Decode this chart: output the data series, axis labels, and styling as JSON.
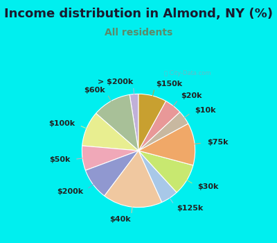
{
  "title": "Income distribution in Almond, NY (%)",
  "subtitle": "All residents",
  "title_color": "#1a1a2e",
  "subtitle_color": "#5a8a6a",
  "bg_cyan": "#00EFEF",
  "bg_chart": "#d8ede0",
  "labels": [
    "> $200k",
    "$60k",
    "$100k",
    "$50k",
    "$200k",
    "$40k",
    "$125k",
    "$30k",
    "$75k",
    "$10k",
    "$20k",
    "$150k"
  ],
  "values": [
    2.5,
    11,
    10,
    7,
    9,
    17,
    5,
    9,
    12,
    4,
    5,
    8
  ],
  "colors": [
    "#c0b0d8",
    "#a8c098",
    "#e8ee90",
    "#f0a8b8",
    "#9098d0",
    "#f0c8a0",
    "#a8c8e8",
    "#c8e870",
    "#f0a868",
    "#c8b8a0",
    "#e89898",
    "#c8a030"
  ],
  "start_angle": 90,
  "label_fontsize": 8,
  "title_fontsize": 13,
  "subtitle_fontsize": 10
}
